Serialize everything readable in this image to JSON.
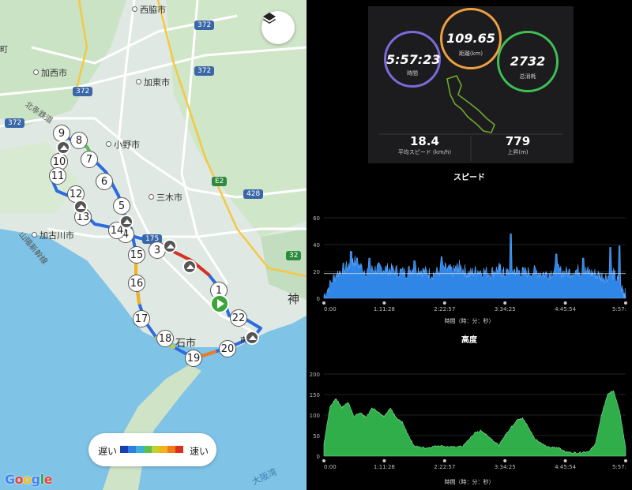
{
  "map": {
    "towns": [
      "西脇市",
      "加西市",
      "加東市",
      "小野市",
      "三木市",
      "加古川市",
      "明石市",
      "神戸"
    ],
    "partial_labels": [
      "町",
      "神",
      "石市",
      "南町"
    ],
    "road_labels": [
      "372",
      "372",
      "372",
      "372",
      "175",
      "E2",
      "428",
      "32",
      "北条鉄道",
      "山陽新幹線",
      "大阪湾"
    ],
    "waypoints": [
      "1",
      "3",
      "4",
      "5",
      "6",
      "7",
      "8",
      "9",
      "10",
      "11",
      "12",
      "13",
      "14",
      "15",
      "16",
      "17",
      "18",
      "19",
      "20",
      "22"
    ],
    "legend": {
      "slow": "遅い",
      "fast": "速い",
      "colors": [
        "#1a3fb0",
        "#2f7fe0",
        "#39b0d8",
        "#5cbf54",
        "#c8cf2a",
        "#f0b21e",
        "#f07a1e",
        "#d9301f"
      ]
    },
    "google_logo": [
      "G",
      "o",
      "o",
      "g",
      "l",
      "e"
    ],
    "layers_icon": "layers-icon"
  },
  "summary": {
    "time_value": "5:57:23",
    "time_label": "時間",
    "distance_value": "109.65",
    "distance_label": "距離(km)",
    "calories_value": "2732",
    "calories_label": "总消耗",
    "avg_speed_value": "18.4",
    "avg_speed_label": "平均スピード (km/h)",
    "ascent_value": "779",
    "ascent_label": "上昇(m)",
    "colors": {
      "time": "#7b6bd8",
      "distance": "#f0a040",
      "calories": "#3fbf55"
    }
  },
  "chart_data": [
    {
      "type": "area",
      "title": "スピード",
      "xlabel": "時間（時：分：秒）",
      "ylabel": "",
      "x_ticks": [
        "0:00",
        "1:11:28",
        "2:22:57",
        "3:34:25",
        "4:45:54",
        "5:57:"
      ],
      "y_ticks": [
        0,
        20,
        40,
        60
      ],
      "ylim": [
        0,
        60
      ],
      "xlim": [
        0,
        100
      ],
      "average_line": 18.4,
      "color": "#2f86e6",
      "series": [
        {
          "x": [
            0,
            4,
            8,
            10,
            14,
            17,
            20,
            23,
            27,
            30,
            33,
            36,
            40,
            43,
            45,
            48,
            51,
            55,
            58,
            60,
            63,
            66,
            70,
            74,
            77,
            80,
            84,
            87,
            90,
            93,
            96,
            99,
            100
          ],
          "values": [
            2,
            18,
            24,
            28,
            20,
            22,
            22,
            21,
            19,
            23,
            20,
            18,
            22,
            20,
            24,
            18,
            21,
            19,
            22,
            18,
            21,
            19,
            20,
            18,
            21,
            19,
            21,
            20,
            18,
            16,
            18,
            6,
            2
          ]
        }
      ],
      "spikes": [
        [
          9,
          35
        ],
        [
          11,
          30
        ],
        [
          15,
          30
        ],
        [
          30,
          28
        ],
        [
          39,
          31
        ],
        [
          62,
          48
        ],
        [
          77,
          33
        ],
        [
          86,
          30
        ],
        [
          95,
          38
        ],
        [
          98,
          39
        ]
      ]
    },
    {
      "type": "area",
      "title": "高度",
      "xlabel": "時間（時：分：秒）",
      "ylabel": "",
      "x_ticks": [
        "0:00",
        "1:11:28",
        "2:22:57",
        "3:34:25",
        "4:45:54",
        "5:57:"
      ],
      "y_ticks": [
        0,
        50,
        100,
        150,
        200
      ],
      "ylim": [
        0,
        200
      ],
      "xlim": [
        0,
        100
      ],
      "color": "#2fae4a",
      "series": [
        {
          "x": [
            0,
            2,
            4,
            6,
            8,
            10,
            12,
            14,
            16,
            18,
            20,
            22,
            24,
            26,
            28,
            30,
            34,
            38,
            42,
            46,
            48,
            50,
            52,
            54,
            58,
            60,
            62,
            64,
            66,
            70,
            74,
            78,
            80,
            84,
            88,
            90,
            92,
            94,
            96,
            98,
            100
          ],
          "values": [
            30,
            120,
            140,
            118,
            132,
            96,
            106,
            94,
            118,
            108,
            96,
            118,
            92,
            82,
            50,
            24,
            20,
            26,
            22,
            24,
            40,
            56,
            62,
            52,
            26,
            50,
            70,
            88,
            92,
            42,
            22,
            20,
            10,
            8,
            12,
            30,
            100,
            150,
            160,
            110,
            20
          ]
        }
      ]
    }
  ]
}
